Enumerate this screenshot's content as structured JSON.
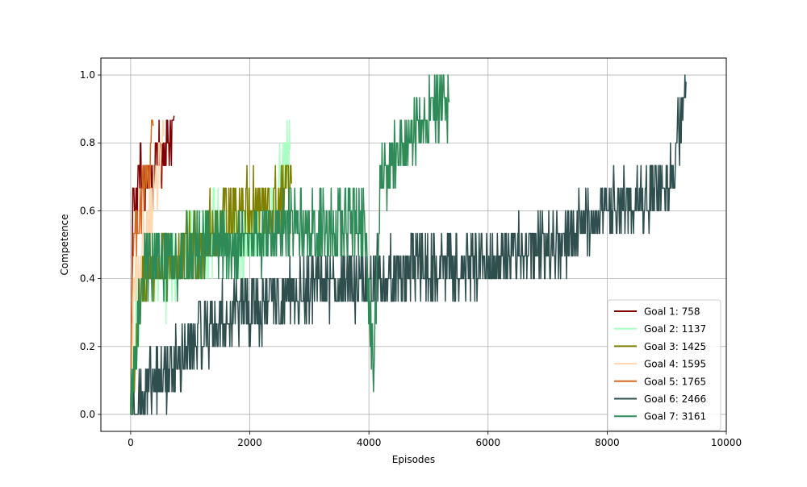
{
  "chart_data": {
    "type": "line",
    "xlabel": "Episodes",
    "ylabel": "Competence",
    "xlim": [
      -500,
      10000
    ],
    "ylim": [
      -0.05,
      1.05
    ],
    "x_ticks": [
      0,
      2000,
      4000,
      6000,
      8000,
      10000
    ],
    "y_ticks": [
      0.0,
      0.2,
      0.4,
      0.6,
      0.8,
      1.0
    ],
    "x_tick_labels": [
      "0",
      "2000",
      "4000",
      "6000",
      "8000",
      "10000"
    ],
    "y_tick_labels": [
      "0.0",
      "0.2",
      "0.4",
      "0.6",
      "0.8",
      "1.0"
    ],
    "grid": true,
    "legend_position": "lower-right",
    "series": [
      {
        "name": "Goal 1: 758",
        "color": "#800000",
        "x_start": 0,
        "x_end": 730,
        "points": [
          [
            0,
            0
          ],
          [
            40,
            0.7
          ],
          [
            100,
            0.6
          ],
          [
            150,
            0.75
          ],
          [
            220,
            0.65
          ],
          [
            300,
            0.72
          ],
          [
            380,
            0.68
          ],
          [
            450,
            0.78
          ],
          [
            520,
            0.76
          ],
          [
            600,
            0.8
          ],
          [
            680,
            0.82
          ],
          [
            730,
            0.88
          ]
        ],
        "noise": 0.07
      },
      {
        "name": "Goal 2: 1137",
        "color": "#aaffc3",
        "x_start": 0,
        "x_end": 2680,
        "points": [
          [
            0,
            0
          ],
          [
            100,
            0.3
          ],
          [
            300,
            0.45
          ],
          [
            600,
            0.4
          ],
          [
            900,
            0.5
          ],
          [
            1200,
            0.5
          ],
          [
            1500,
            0.55
          ],
          [
            1800,
            0.5
          ],
          [
            2100,
            0.55
          ],
          [
            2400,
            0.6
          ],
          [
            2680,
            0.78
          ]
        ],
        "noise": 0.11
      },
      {
        "name": "Goal 3: 1425",
        "color": "#808000",
        "x_start": 0,
        "x_end": 2700,
        "points": [
          [
            0,
            0
          ],
          [
            200,
            0.4
          ],
          [
            500,
            0.45
          ],
          [
            800,
            0.45
          ],
          [
            1100,
            0.5
          ],
          [
            1400,
            0.55
          ],
          [
            1700,
            0.6
          ],
          [
            2000,
            0.62
          ],
          [
            2300,
            0.6
          ],
          [
            2500,
            0.62
          ],
          [
            2700,
            0.68
          ]
        ],
        "noise": 0.1
      },
      {
        "name": "Goal 4: 1595",
        "color": "#ffd8b1",
        "x_start": 0,
        "x_end": 560,
        "points": [
          [
            0,
            0
          ],
          [
            60,
            0.4
          ],
          [
            150,
            0.35
          ],
          [
            250,
            0.55
          ],
          [
            350,
            0.6
          ],
          [
            450,
            0.7
          ],
          [
            560,
            0.82
          ]
        ],
        "noise": 0.1
      },
      {
        "name": "Goal 5: 1765",
        "color": "#d2691e",
        "x_start": 0,
        "x_end": 380,
        "points": [
          [
            0,
            0
          ],
          [
            30,
            0.5
          ],
          [
            80,
            0.55
          ],
          [
            150,
            0.6
          ],
          [
            220,
            0.65
          ],
          [
            300,
            0.7
          ],
          [
            380,
            0.85
          ]
        ],
        "noise": 0.08
      },
      {
        "name": "Goal 6: 2466",
        "color": "#2f4f4f",
        "x_start": 0,
        "x_end": 9330,
        "points": [
          [
            0,
            0
          ],
          [
            200,
            0.05
          ],
          [
            500,
            0.1
          ],
          [
            800,
            0.15
          ],
          [
            1200,
            0.25
          ],
          [
            1800,
            0.3
          ],
          [
            2500,
            0.33
          ],
          [
            3200,
            0.38
          ],
          [
            4000,
            0.4
          ],
          [
            4800,
            0.42
          ],
          [
            5600,
            0.45
          ],
          [
            6400,
            0.47
          ],
          [
            7200,
            0.5
          ],
          [
            8000,
            0.6
          ],
          [
            8700,
            0.65
          ],
          [
            9100,
            0.7
          ],
          [
            9330,
            0.98
          ]
        ],
        "noise": 0.1
      },
      {
        "name": "Goal 7: 3161",
        "color": "#2e8b57",
        "x_start": 0,
        "x_end": 5350,
        "points": [
          [
            0,
            0
          ],
          [
            200,
            0.45
          ],
          [
            600,
            0.45
          ],
          [
            1000,
            0.48
          ],
          [
            1600,
            0.5
          ],
          [
            2200,
            0.52
          ],
          [
            2800,
            0.55
          ],
          [
            3400,
            0.55
          ],
          [
            3900,
            0.58
          ],
          [
            4080,
            0.15
          ],
          [
            4200,
            0.7
          ],
          [
            4600,
            0.8
          ],
          [
            5000,
            0.9
          ],
          [
            5350,
            0.92
          ]
        ],
        "noise": 0.1
      }
    ]
  }
}
